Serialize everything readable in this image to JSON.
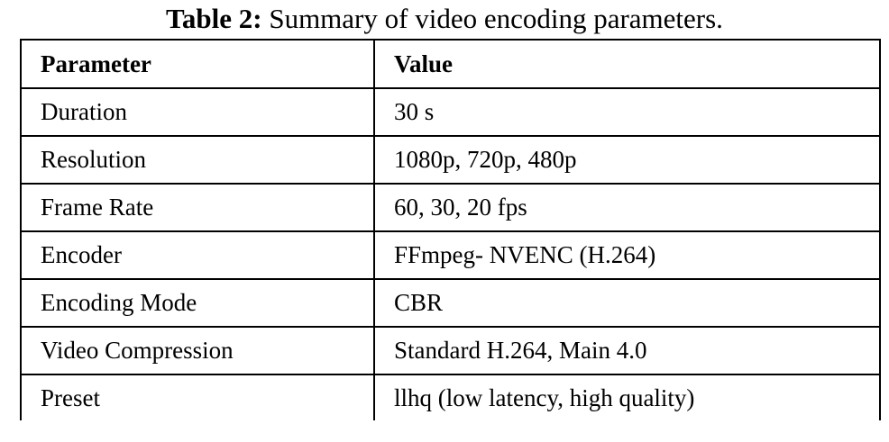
{
  "caption": {
    "label": "Table 2:",
    "text": " Summary of video encoding parameters."
  },
  "table": {
    "headers": [
      "Parameter",
      "Value"
    ],
    "rows": [
      [
        "Duration",
        "30 s"
      ],
      [
        "Resolution",
        "1080p, 720p, 480p"
      ],
      [
        "Frame Rate",
        "60, 30, 20 fps"
      ],
      [
        "Encoder",
        "FFmpeg- NVENC (H.264)"
      ],
      [
        "Encoding Mode",
        "CBR"
      ],
      [
        "Video Compression",
        "Standard H.264, Main 4.0"
      ],
      [
        "Preset",
        "llhq (low latency, high quality)"
      ]
    ]
  }
}
